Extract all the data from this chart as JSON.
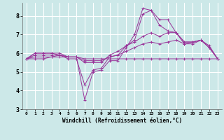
{
  "title": "",
  "xlabel": "Windchill (Refroidissement éolien,°C)",
  "ylabel": "",
  "bg_color": "#cce8e8",
  "grid_color": "#ffffff",
  "line_color": "#993399",
  "xlim": [
    -0.5,
    23.5
  ],
  "ylim": [
    3.0,
    8.7
  ],
  "yticks": [
    3,
    4,
    5,
    6,
    7,
    8
  ],
  "xticks": [
    0,
    1,
    2,
    3,
    4,
    5,
    6,
    7,
    8,
    9,
    10,
    11,
    12,
    13,
    14,
    15,
    16,
    17,
    18,
    19,
    20,
    21,
    22,
    23
  ],
  "series": [
    {
      "x": [
        0,
        1,
        2,
        3,
        4,
        5,
        6,
        7,
        8,
        9,
        10,
        11,
        12,
        13,
        14,
        15,
        16,
        17,
        18,
        19,
        20,
        21,
        22,
        23
      ],
      "y": [
        5.7,
        6.0,
        6.0,
        6.0,
        6.0,
        5.8,
        5.8,
        3.5,
        5.0,
        5.1,
        5.6,
        5.6,
        6.3,
        7.0,
        8.4,
        8.3,
        7.8,
        7.8,
        7.1,
        6.5,
        6.5,
        6.7,
        6.4,
        5.7
      ]
    },
    {
      "x": [
        0,
        1,
        2,
        3,
        4,
        5,
        6,
        7,
        8,
        9,
        10,
        11,
        12,
        13,
        14,
        15,
        16,
        17,
        18,
        19,
        20,
        21,
        22,
        23
      ],
      "y": [
        5.7,
        6.0,
        6.0,
        6.0,
        5.9,
        5.7,
        5.7,
        4.3,
        5.1,
        5.2,
        5.8,
        5.9,
        6.4,
        6.7,
        8.1,
        8.3,
        7.5,
        7.2,
        7.1,
        6.6,
        6.6,
        6.7,
        6.3,
        5.7
      ]
    },
    {
      "x": [
        0,
        1,
        2,
        3,
        4,
        5,
        6,
        7,
        8,
        9,
        10,
        11,
        12,
        13,
        14,
        15,
        16,
        17,
        18,
        19,
        20,
        21,
        22,
        23
      ],
      "y": [
        5.7,
        5.9,
        5.9,
        5.9,
        5.9,
        5.8,
        5.8,
        5.5,
        5.5,
        5.5,
        5.9,
        6.1,
        6.4,
        6.6,
        6.9,
        7.1,
        6.9,
        7.1,
        7.1,
        6.6,
        6.6,
        6.7,
        6.3,
        5.7
      ]
    },
    {
      "x": [
        0,
        1,
        2,
        3,
        4,
        5,
        6,
        7,
        8,
        9,
        10,
        11,
        12,
        13,
        14,
        15,
        16,
        17,
        18,
        19,
        20,
        21,
        22,
        23
      ],
      "y": [
        5.7,
        5.8,
        5.8,
        5.8,
        5.9,
        5.8,
        5.8,
        5.6,
        5.6,
        5.6,
        5.8,
        5.9,
        6.1,
        6.3,
        6.5,
        6.6,
        6.5,
        6.6,
        6.7,
        6.5,
        6.6,
        6.7,
        6.3,
        5.7
      ]
    },
    {
      "x": [
        0,
        1,
        2,
        3,
        4,
        5,
        6,
        7,
        8,
        9,
        10,
        11,
        12,
        13,
        14,
        15,
        16,
        17,
        18,
        19,
        20,
        21,
        22,
        23
      ],
      "y": [
        5.7,
        5.7,
        5.7,
        5.8,
        5.8,
        5.8,
        5.8,
        5.7,
        5.7,
        5.7,
        5.7,
        5.7,
        5.7,
        5.7,
        5.7,
        5.7,
        5.7,
        5.7,
        5.7,
        5.7,
        5.7,
        5.7,
        5.7,
        5.7
      ]
    }
  ]
}
